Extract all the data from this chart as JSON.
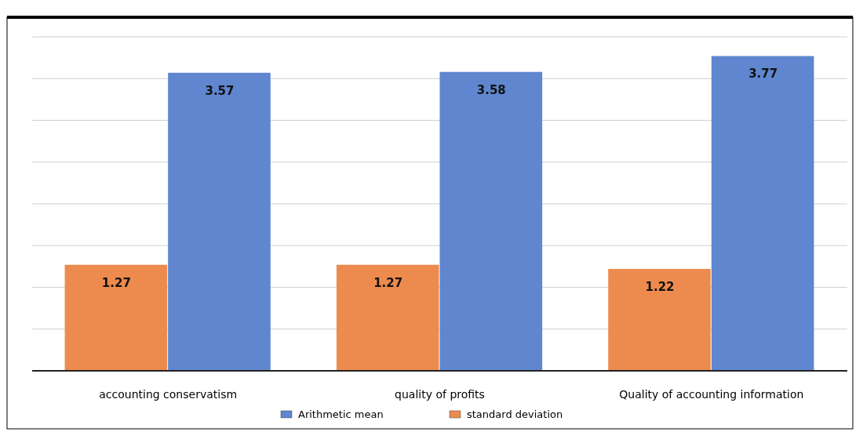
{
  "chart_data": {
    "type": "bar",
    "categories": [
      "accounting conservatism",
      "quality of profits",
      "Quality of accounting information"
    ],
    "series": [
      {
        "name": "standard deviation",
        "color": "#ed8b4f",
        "values": [
          1.27,
          1.27,
          1.22
        ]
      },
      {
        "name": "Arithmetic mean",
        "color": "#5f86cf",
        "values": [
          3.57,
          3.58,
          3.77
        ]
      }
    ],
    "ylim": [
      0,
      4
    ],
    "yticks": [
      {
        "value": 0,
        "label": null
      },
      {
        "value": 0.5,
        "label": null
      },
      {
        "value": 1,
        "label": null
      },
      {
        "value": 1.5,
        "label": null
      },
      {
        "value": 2,
        "label": null
      },
      {
        "value": 2.5,
        "label": null
      },
      {
        "value": 3,
        "label": null
      },
      {
        "value": 3.5,
        "label": null
      },
      {
        "value": 4,
        "label": null
      }
    ],
    "grid": "y",
    "data_labels": true,
    "legend": "bottom",
    "tick_labels": "x"
  }
}
